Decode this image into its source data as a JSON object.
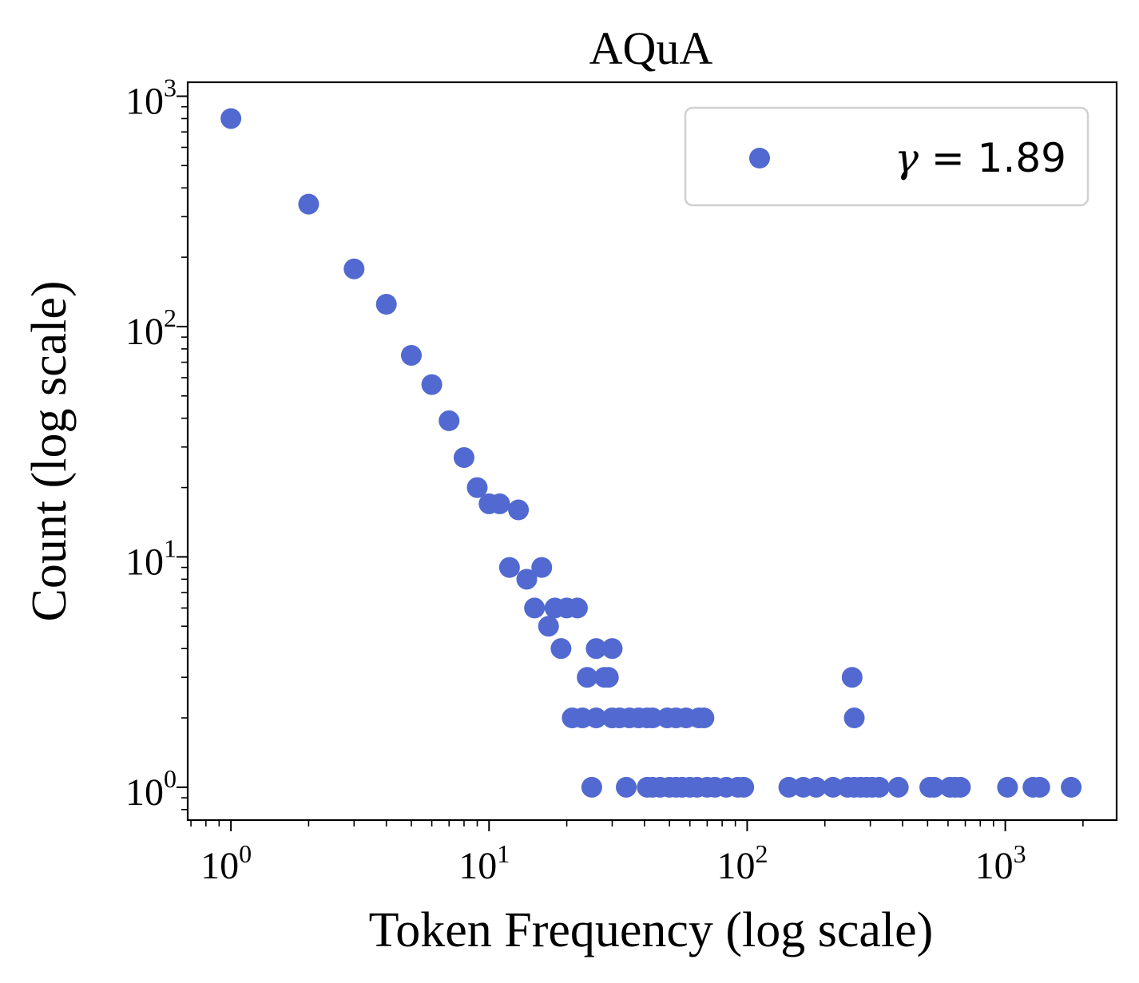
{
  "chart_data": {
    "type": "scatter",
    "title": "AQuA",
    "xlabel": "Token Frequency (log scale)",
    "ylabel": "Count (log scale)",
    "xscale": "log",
    "yscale": "log",
    "xlim": [
      0.68,
      2700
    ],
    "ylim": [
      0.72,
      1150
    ],
    "x_ticks": [
      1,
      10,
      100,
      1000
    ],
    "y_ticks": [
      1,
      10,
      100,
      1000
    ],
    "x_tick_labels": [
      {
        "base": "10",
        "exp": "0"
      },
      {
        "base": "10",
        "exp": "1"
      },
      {
        "base": "10",
        "exp": "2"
      },
      {
        "base": "10",
        "exp": "3"
      }
    ],
    "y_tick_labels": [
      {
        "base": "10",
        "exp": "0"
      },
      {
        "base": "10",
        "exp": "1"
      },
      {
        "base": "10",
        "exp": "2"
      },
      {
        "base": "10",
        "exp": "3"
      }
    ],
    "grid": false,
    "legend_position": "top-right",
    "marker_color": "#5169d0",
    "series": [
      {
        "name": "γ = 1.89",
        "legend_label": {
          "symbol": "γ",
          "rest": " = 1.89"
        },
        "points": [
          [
            1,
            800
          ],
          [
            2,
            340
          ],
          [
            3,
            178
          ],
          [
            4,
            125
          ],
          [
            5,
            75
          ],
          [
            6,
            56
          ],
          [
            7,
            39
          ],
          [
            8,
            27
          ],
          [
            9,
            20
          ],
          [
            10,
            17
          ],
          [
            11,
            17
          ],
          [
            13,
            16
          ],
          [
            12,
            9
          ],
          [
            14,
            8
          ],
          [
            16,
            9
          ],
          [
            15,
            6
          ],
          [
            17,
            5
          ],
          [
            18,
            6
          ],
          [
            20,
            6
          ],
          [
            22,
            6
          ],
          [
            19,
            4
          ],
          [
            24,
            3
          ],
          [
            28,
            3
          ],
          [
            29,
            3
          ],
          [
            26,
            4
          ],
          [
            30,
            4
          ],
          [
            21,
            2
          ],
          [
            23,
            2
          ],
          [
            26,
            2
          ],
          [
            30,
            2
          ],
          [
            32,
            2
          ],
          [
            35,
            2
          ],
          [
            38,
            2
          ],
          [
            41,
            2
          ],
          [
            43,
            2
          ],
          [
            49,
            2
          ],
          [
            53,
            2
          ],
          [
            58,
            2
          ],
          [
            65,
            2
          ],
          [
            68,
            2
          ],
          [
            25,
            1
          ],
          [
            34,
            1
          ],
          [
            41,
            1
          ],
          [
            43,
            1
          ],
          [
            46,
            1
          ],
          [
            50,
            1
          ],
          [
            53,
            1
          ],
          [
            56,
            1
          ],
          [
            60,
            1
          ],
          [
            64,
            1
          ],
          [
            70,
            1
          ],
          [
            75,
            1
          ],
          [
            83,
            1
          ],
          [
            92,
            1
          ],
          [
            97,
            1
          ],
          [
            145,
            1
          ],
          [
            165,
            1
          ],
          [
            185,
            1
          ],
          [
            215,
            1
          ],
          [
            245,
            1
          ],
          [
            260,
            1
          ],
          [
            275,
            1
          ],
          [
            290,
            1
          ],
          [
            305,
            1
          ],
          [
            325,
            1
          ],
          [
            385,
            1
          ],
          [
            510,
            1
          ],
          [
            530,
            1
          ],
          [
            610,
            1
          ],
          [
            640,
            1
          ],
          [
            670,
            1
          ],
          [
            1020,
            1
          ],
          [
            1280,
            1
          ],
          [
            1360,
            1
          ],
          [
            1800,
            1
          ],
          [
            255,
            3
          ],
          [
            260,
            2
          ]
        ]
      }
    ]
  }
}
